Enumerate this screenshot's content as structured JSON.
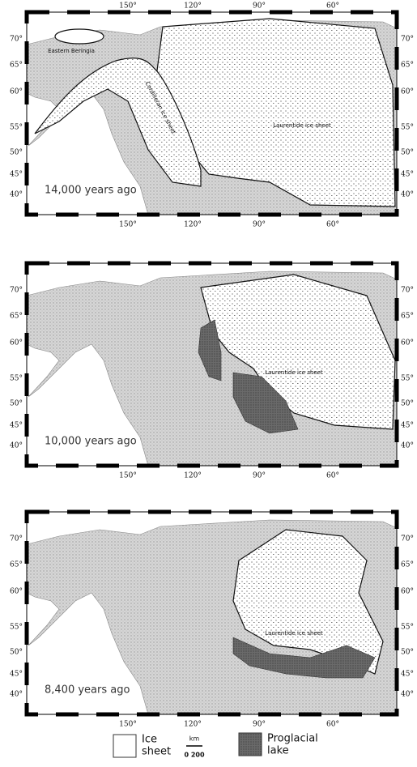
{
  "map": {
    "longitude_labels": [
      "150°",
      "120°",
      "90°",
      "60°"
    ],
    "latitude_labels": [
      "70°",
      "65°",
      "60°",
      "55°",
      "50°",
      "45°",
      "40°"
    ],
    "panels": [
      {
        "age": "14,000 years ago",
        "labels": [
          "Eastern Beringia",
          "Cordilleran ice sheet",
          "Laurentide ice sheet"
        ]
      },
      {
        "age": "10,000 years ago",
        "labels": [
          "Laurentide ice sheet"
        ]
      },
      {
        "age": "8,400 years ago",
        "labels": [
          "Laurentide ice sheet"
        ]
      }
    ],
    "legend": {
      "ice_sheet": [
        "Ice",
        "sheet"
      ],
      "scale_unit": "km",
      "scale_values": "0 200",
      "lake": [
        "Proglacial",
        "lake"
      ]
    }
  }
}
